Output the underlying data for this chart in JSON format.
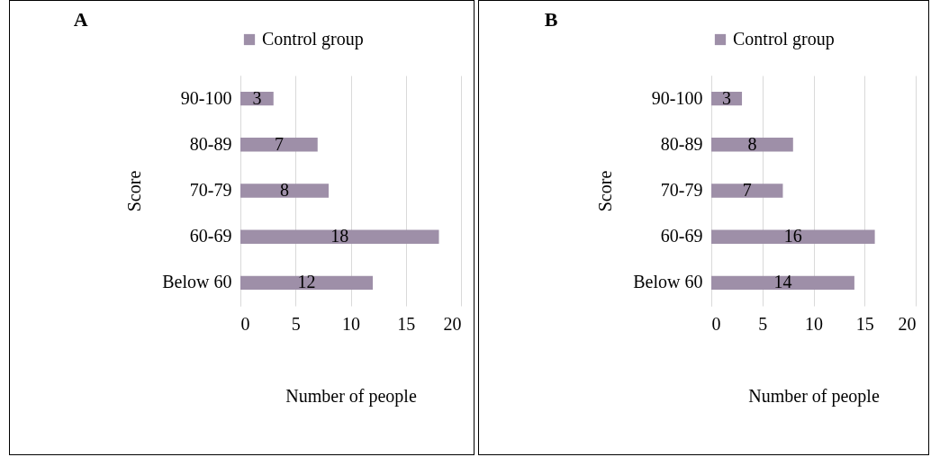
{
  "chart_data": [
    {
      "type": "bar",
      "orientation": "horizontal",
      "title": "A",
      "categories": [
        "90-100",
        "80-89",
        "70-79",
        "60-69",
        "Below 60"
      ],
      "series": [
        {
          "name": "Control group",
          "color": "#9e8fa8",
          "values": [
            3,
            7,
            8,
            18,
            12
          ]
        }
      ],
      "xlabel": "Number of people",
      "ylabel": "Score",
      "xlim": [
        0,
        20
      ],
      "xticks": [
        0,
        5,
        10,
        15,
        20
      ],
      "grid": "x",
      "legend": "top",
      "data_labels": true
    },
    {
      "type": "bar",
      "orientation": "horizontal",
      "title": "B",
      "categories": [
        "90-100",
        "80-89",
        "70-79",
        "60-69",
        "Below 60"
      ],
      "series": [
        {
          "name": "Control group",
          "color": "#9e8fa8",
          "values": [
            3,
            8,
            7,
            16,
            14
          ]
        }
      ],
      "xlabel": "Number of people",
      "ylabel": "Score",
      "xlim": [
        0,
        20
      ],
      "xticks": [
        0,
        5,
        10,
        15,
        20
      ],
      "grid": "x",
      "legend": "top",
      "data_labels": true
    }
  ]
}
